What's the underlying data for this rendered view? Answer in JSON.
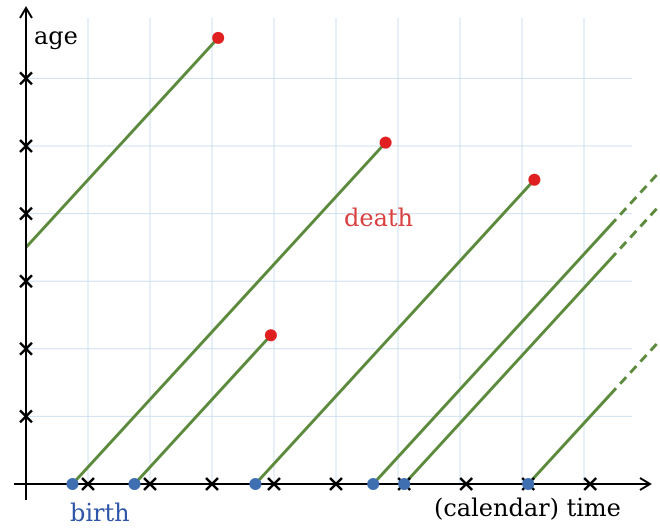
{
  "labels": {
    "y_axis": "age",
    "x_axis": "(calendar) time",
    "death": "death",
    "birth": "birth"
  },
  "colors": {
    "grid": "#cfe0f0",
    "axis": "#000000",
    "lifeline": "#5c8a3c",
    "birth": "#3f6fb0",
    "death": "#e02020",
    "death_label": "#d94040",
    "birth_label": "#2f56a8"
  },
  "lifelines": [
    {
      "birth": -3.5,
      "death": 3.1
    },
    {
      "birth": 0.75,
      "death": 5.8
    },
    {
      "birth": 1.75,
      "death": 3.95
    },
    {
      "birth": 3.7,
      "death": 8.2
    },
    {
      "birth": 5.6,
      "censored": true
    },
    {
      "birth": 6.1,
      "censored": true
    },
    {
      "birth": 8.1,
      "censored": true
    }
  ],
  "events": [
    {
      "x": 1.0
    },
    {
      "x": 2.0
    },
    {
      "x": 3.0
    },
    {
      "x": 4.0
    },
    {
      "x": 5.0
    },
    {
      "x": 6.1
    },
    {
      "x": 7.1
    },
    {
      "x": 8.1
    },
    {
      "x": 9.1
    }
  ],
  "age_ticks": [
    1,
    2,
    3,
    4,
    5,
    6
  ]
}
